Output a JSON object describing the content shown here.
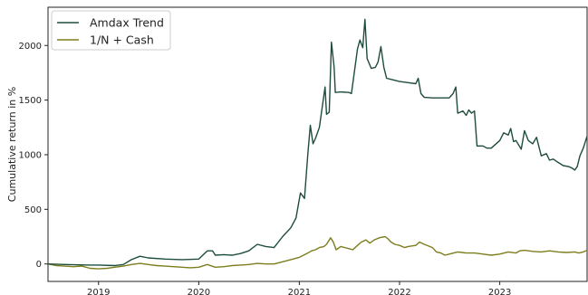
{
  "chart_data": {
    "type": "line",
    "title": "",
    "xlabel": "",
    "ylabel": "Cumulative return in %",
    "xlim": [
      "2018-07-01",
      "2023-11-15"
    ],
    "ylim": [
      -160,
      2350
    ],
    "x_ticks": [
      "2019-01-01",
      "2020-01-01",
      "2021-01-01",
      "2022-01-01",
      "2023-01-01"
    ],
    "x_tick_labels": [
      "2019",
      "2020",
      "2021",
      "2022",
      "2023"
    ],
    "y_ticks": [
      0,
      500,
      1000,
      1500,
      2000
    ],
    "y_tick_labels": [
      "0",
      "500",
      "1000",
      "1500",
      "2000"
    ],
    "grid": false,
    "legend_position": "top-left",
    "series": [
      {
        "name": "Amdax Trend",
        "color": "#1e4d3c",
        "points": [
          [
            "2018-07-01",
            0
          ],
          [
            "2018-09-01",
            -5
          ],
          [
            "2018-12-01",
            -10
          ],
          [
            "2019-01-01",
            -10
          ],
          [
            "2019-03-01",
            -15
          ],
          [
            "2019-04-01",
            -5
          ],
          [
            "2019-05-01",
            40
          ],
          [
            "2019-06-01",
            70
          ],
          [
            "2019-07-01",
            55
          ],
          [
            "2019-09-01",
            45
          ],
          [
            "2019-11-01",
            40
          ],
          [
            "2020-01-01",
            45
          ],
          [
            "2020-02-01",
            120
          ],
          [
            "2020-02-20",
            120
          ],
          [
            "2020-03-01",
            80
          ],
          [
            "2020-04-01",
            85
          ],
          [
            "2020-05-01",
            80
          ],
          [
            "2020-06-01",
            95
          ],
          [
            "2020-07-01",
            120
          ],
          [
            "2020-08-01",
            180
          ],
          [
            "2020-09-01",
            160
          ],
          [
            "2020-10-01",
            150
          ],
          [
            "2020-11-01",
            250
          ],
          [
            "2020-12-01",
            330
          ],
          [
            "2020-12-20",
            420
          ],
          [
            "2021-01-05",
            650
          ],
          [
            "2021-01-20",
            600
          ],
          [
            "2021-02-01",
            1000
          ],
          [
            "2021-02-10",
            1270
          ],
          [
            "2021-02-20",
            1100
          ],
          [
            "2021-03-01",
            1150
          ],
          [
            "2021-03-15",
            1250
          ],
          [
            "2021-04-05",
            1620
          ],
          [
            "2021-04-10",
            1370
          ],
          [
            "2021-04-20",
            1390
          ],
          [
            "2021-04-28",
            2030
          ],
          [
            "2021-05-08",
            1800
          ],
          [
            "2021-05-12",
            1570
          ],
          [
            "2021-06-01",
            1575
          ],
          [
            "2021-07-01",
            1570
          ],
          [
            "2021-07-10",
            1560
          ],
          [
            "2021-08-01",
            1970
          ],
          [
            "2021-08-10",
            2050
          ],
          [
            "2021-08-20",
            1980
          ],
          [
            "2021-08-28",
            2240
          ],
          [
            "2021-09-05",
            1880
          ],
          [
            "2021-09-20",
            1790
          ],
          [
            "2021-10-05",
            1800
          ],
          [
            "2021-10-15",
            1850
          ],
          [
            "2021-10-25",
            1990
          ],
          [
            "2021-11-05",
            1800
          ],
          [
            "2021-11-15",
            1700
          ],
          [
            "2021-12-01",
            1690
          ],
          [
            "2022-01-01",
            1670
          ],
          [
            "2022-02-01",
            1660
          ],
          [
            "2022-03-01",
            1650
          ],
          [
            "2022-03-10",
            1700
          ],
          [
            "2022-03-20",
            1560
          ],
          [
            "2022-04-01",
            1525
          ],
          [
            "2022-05-01",
            1520
          ],
          [
            "2022-06-01",
            1520
          ],
          [
            "2022-07-01",
            1520
          ],
          [
            "2022-07-15",
            1560
          ],
          [
            "2022-07-25",
            1620
          ],
          [
            "2022-08-01",
            1380
          ],
          [
            "2022-08-20",
            1400
          ],
          [
            "2022-09-01",
            1360
          ],
          [
            "2022-09-10",
            1410
          ],
          [
            "2022-09-20",
            1380
          ],
          [
            "2022-10-01",
            1400
          ],
          [
            "2022-10-10",
            1080
          ],
          [
            "2022-11-01",
            1080
          ],
          [
            "2022-11-15",
            1060
          ],
          [
            "2022-12-01",
            1060
          ],
          [
            "2023-01-01",
            1130
          ],
          [
            "2023-01-15",
            1200
          ],
          [
            "2023-02-01",
            1180
          ],
          [
            "2023-02-10",
            1240
          ],
          [
            "2023-02-20",
            1120
          ],
          [
            "2023-03-01",
            1130
          ],
          [
            "2023-03-20",
            1050
          ],
          [
            "2023-04-01",
            1220
          ],
          [
            "2023-04-15",
            1130
          ],
          [
            "2023-05-01",
            1100
          ],
          [
            "2023-05-15",
            1160
          ],
          [
            "2023-06-01",
            990
          ],
          [
            "2023-06-20",
            1010
          ],
          [
            "2023-07-01",
            950
          ],
          [
            "2023-07-15",
            960
          ],
          [
            "2023-08-01",
            930
          ],
          [
            "2023-08-20",
            900
          ],
          [
            "2023-09-10",
            890
          ],
          [
            "2023-09-20",
            880
          ],
          [
            "2023-10-01",
            860
          ],
          [
            "2023-10-10",
            890
          ],
          [
            "2023-10-20",
            990
          ],
          [
            "2023-11-01",
            1060
          ],
          [
            "2023-11-15",
            1170
          ]
        ]
      },
      {
        "name": "1/N + Cash",
        "color": "#7d7d1e",
        "points": [
          [
            "2018-07-01",
            0
          ],
          [
            "2018-08-01",
            -15
          ],
          [
            "2018-09-01",
            -20
          ],
          [
            "2018-10-01",
            -25
          ],
          [
            "2018-11-01",
            -20
          ],
          [
            "2018-12-01",
            -40
          ],
          [
            "2019-01-01",
            -45
          ],
          [
            "2019-02-01",
            -40
          ],
          [
            "2019-03-01",
            -30
          ],
          [
            "2019-04-01",
            -20
          ],
          [
            "2019-05-01",
            -5
          ],
          [
            "2019-06-01",
            5
          ],
          [
            "2019-07-01",
            -5
          ],
          [
            "2019-08-01",
            -15
          ],
          [
            "2019-09-01",
            -20
          ],
          [
            "2019-10-01",
            -25
          ],
          [
            "2019-11-01",
            -30
          ],
          [
            "2019-12-01",
            -35
          ],
          [
            "2020-01-01",
            -30
          ],
          [
            "2020-02-01",
            -5
          ],
          [
            "2020-03-01",
            -30
          ],
          [
            "2020-04-01",
            -25
          ],
          [
            "2020-05-01",
            -15
          ],
          [
            "2020-06-01",
            -10
          ],
          [
            "2020-07-01",
            -5
          ],
          [
            "2020-08-01",
            5
          ],
          [
            "2020-09-01",
            0
          ],
          [
            "2020-10-01",
            0
          ],
          [
            "2020-11-01",
            20
          ],
          [
            "2020-12-01",
            40
          ],
          [
            "2021-01-01",
            60
          ],
          [
            "2021-02-01",
            100
          ],
          [
            "2021-02-15",
            120
          ],
          [
            "2021-03-01",
            130
          ],
          [
            "2021-03-15",
            150
          ],
          [
            "2021-04-01",
            160
          ],
          [
            "2021-04-10",
            180
          ],
          [
            "2021-04-25",
            240
          ],
          [
            "2021-05-05",
            200
          ],
          [
            "2021-05-15",
            130
          ],
          [
            "2021-06-01",
            160
          ],
          [
            "2021-07-01",
            140
          ],
          [
            "2021-07-15",
            130
          ],
          [
            "2021-08-01",
            170
          ],
          [
            "2021-08-15",
            200
          ],
          [
            "2021-09-01",
            220
          ],
          [
            "2021-09-15",
            190
          ],
          [
            "2021-10-01",
            220
          ],
          [
            "2021-10-20",
            240
          ],
          [
            "2021-11-10",
            250
          ],
          [
            "2021-11-20",
            230
          ],
          [
            "2021-12-01",
            200
          ],
          [
            "2021-12-15",
            180
          ],
          [
            "2022-01-01",
            170
          ],
          [
            "2022-01-20",
            150
          ],
          [
            "2022-02-01",
            160
          ],
          [
            "2022-03-01",
            170
          ],
          [
            "2022-03-15",
            200
          ],
          [
            "2022-04-01",
            180
          ],
          [
            "2022-05-01",
            150
          ],
          [
            "2022-05-15",
            110
          ],
          [
            "2022-06-01",
            100
          ],
          [
            "2022-06-15",
            80
          ],
          [
            "2022-07-01",
            90
          ],
          [
            "2022-08-01",
            110
          ],
          [
            "2022-09-01",
            100
          ],
          [
            "2022-10-01",
            100
          ],
          [
            "2022-11-01",
            90
          ],
          [
            "2022-12-01",
            80
          ],
          [
            "2023-01-01",
            90
          ],
          [
            "2023-02-01",
            110
          ],
          [
            "2023-03-01",
            100
          ],
          [
            "2023-03-15",
            120
          ],
          [
            "2023-04-01",
            125
          ],
          [
            "2023-05-01",
            115
          ],
          [
            "2023-06-01",
            110
          ],
          [
            "2023-07-01",
            120
          ],
          [
            "2023-08-01",
            110
          ],
          [
            "2023-09-01",
            105
          ],
          [
            "2023-10-01",
            110
          ],
          [
            "2023-10-15",
            100
          ],
          [
            "2023-11-01",
            110
          ],
          [
            "2023-11-15",
            125
          ]
        ]
      }
    ]
  }
}
